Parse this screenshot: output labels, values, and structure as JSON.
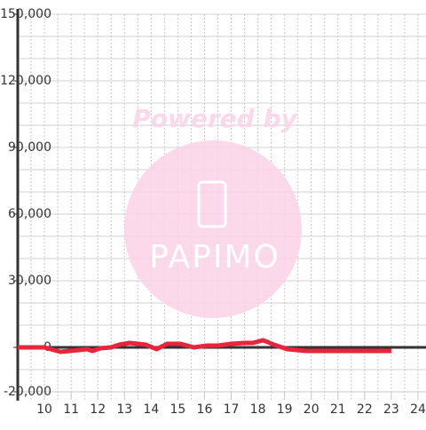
{
  "chart_data": {
    "type": "line",
    "x": [
      9,
      10,
      10.6,
      11.3,
      11.6,
      11.8,
      12.1,
      12.5,
      12.8,
      13.2,
      13.8,
      14.2,
      14.6,
      15.1,
      15.6,
      16.1,
      16.5,
      17,
      17.5,
      17.8,
      18.2,
      18.6,
      19.1,
      19.8,
      23
    ],
    "series": [
      {
        "color": "#e8253a",
        "values": [
          0,
          0,
          -2000,
          -1200,
          -800,
          -1600,
          -400,
          0,
          1200,
          2000,
          1200,
          -800,
          1600,
          1600,
          0,
          800,
          800,
          1600,
          2000,
          2000,
          3200,
          1200,
          -800,
          -1600,
          -1600
        ]
      }
    ],
    "xlim": [
      9,
      24.3
    ],
    "xticks": [
      10,
      11,
      12,
      13,
      14,
      15,
      16,
      17,
      18,
      19,
      20,
      21,
      22,
      23,
      24
    ],
    "ylim": [
      -20000,
      150000
    ],
    "yticks": [
      {
        "value": -20000,
        "label": "-20,000"
      },
      0,
      {
        "value": 30000,
        "label": "30,000"
      },
      {
        "value": 60000,
        "label": "60,000"
      },
      {
        "value": 90000,
        "label": "90,000"
      },
      {
        "value": 120000,
        "label": "120,000"
      },
      {
        "value": 150000,
        "label": "150,000"
      }
    ],
    "grid": true,
    "watermark": {
      "title": "Powered by",
      "brand": "PAPIMO"
    }
  }
}
